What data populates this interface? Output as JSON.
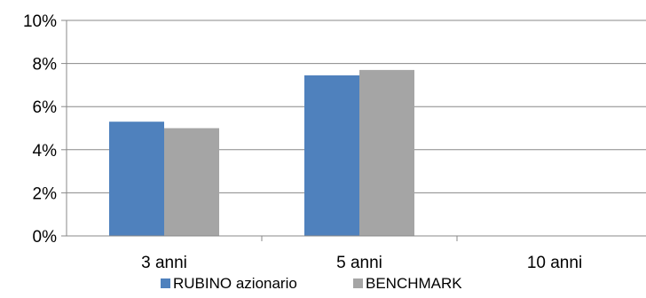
{
  "chart_data": {
    "type": "bar",
    "title": "",
    "xlabel": "",
    "ylabel": "",
    "categories": [
      "3 anni",
      "5 anni",
      "10 anni"
    ],
    "series": [
      {
        "name": "RUBINO azionario",
        "values": [
          5.3,
          7.45,
          null
        ],
        "color": "#4F81BD"
      },
      {
        "name": "BENCHMARK",
        "values": [
          5.0,
          7.7,
          null
        ],
        "color": "#A5A5A5"
      }
    ],
    "ylim": [
      0,
      10
    ],
    "yticks": [
      "0%",
      "2%",
      "4%",
      "6%",
      "8%",
      "10%"
    ],
    "grid": true,
    "legend_position": "bottom"
  }
}
